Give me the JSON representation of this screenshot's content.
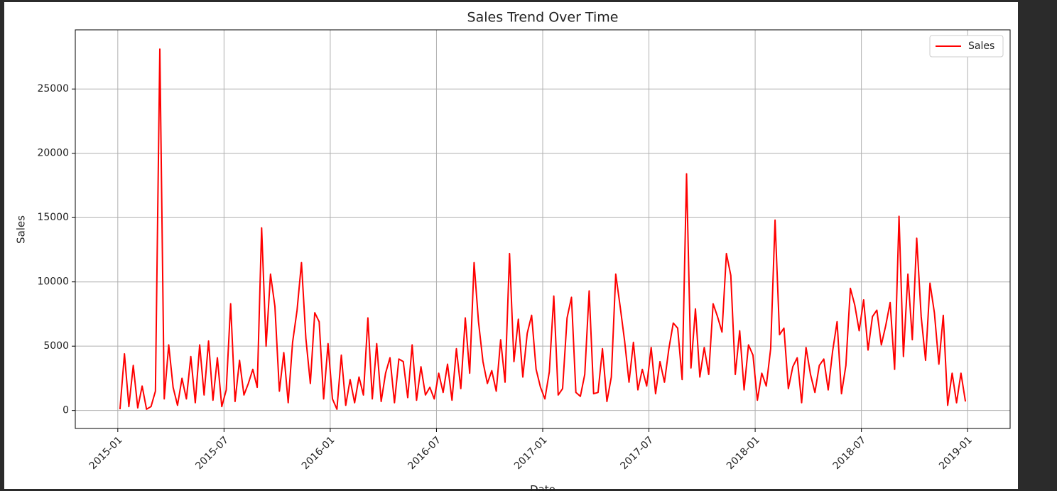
{
  "chart_data": {
    "type": "line",
    "title": "Sales Trend Over Time",
    "x_label": "Date",
    "y_label": "Sales",
    "x": [
      "2015-01",
      "2015-01",
      "2015-01",
      "2015-01",
      "2015-02",
      "2015-02",
      "2015-02",
      "2015-02",
      "2015-03",
      "2015-03",
      "2015-03",
      "2015-03",
      "2015-04",
      "2015-04",
      "2015-04",
      "2015-04",
      "2015-05",
      "2015-05",
      "2015-05",
      "2015-05",
      "2015-06",
      "2015-06",
      "2015-06",
      "2015-06",
      "2015-07",
      "2015-07",
      "2015-07",
      "2015-07",
      "2015-08",
      "2015-08",
      "2015-08",
      "2015-08",
      "2015-09",
      "2015-09",
      "2015-09",
      "2015-09",
      "2015-10",
      "2015-10",
      "2015-10",
      "2015-10",
      "2015-11",
      "2015-11",
      "2015-11",
      "2015-11",
      "2015-12",
      "2015-12",
      "2015-12",
      "2015-12",
      "2016-01",
      "2016-01",
      "2016-01",
      "2016-01",
      "2016-02",
      "2016-02",
      "2016-02",
      "2016-02",
      "2016-03",
      "2016-03",
      "2016-03",
      "2016-03",
      "2016-04",
      "2016-04",
      "2016-04",
      "2016-04",
      "2016-05",
      "2016-05",
      "2016-05",
      "2016-05",
      "2016-06",
      "2016-06",
      "2016-06",
      "2016-06",
      "2016-07",
      "2016-07",
      "2016-07",
      "2016-07",
      "2016-08",
      "2016-08",
      "2016-08",
      "2016-08",
      "2016-09",
      "2016-09",
      "2016-09",
      "2016-09",
      "2016-10",
      "2016-10",
      "2016-10",
      "2016-10",
      "2016-11",
      "2016-11",
      "2016-11",
      "2016-11",
      "2016-12",
      "2016-12",
      "2016-12",
      "2016-12",
      "2017-01",
      "2017-01",
      "2017-01",
      "2017-01",
      "2017-02",
      "2017-02",
      "2017-02",
      "2017-02",
      "2017-03",
      "2017-03",
      "2017-03",
      "2017-03",
      "2017-04",
      "2017-04",
      "2017-04",
      "2017-04",
      "2017-05",
      "2017-05",
      "2017-05",
      "2017-05",
      "2017-06",
      "2017-06",
      "2017-06",
      "2017-06",
      "2017-07",
      "2017-07",
      "2017-07",
      "2017-07",
      "2017-08",
      "2017-08",
      "2017-08",
      "2017-08",
      "2017-09",
      "2017-09",
      "2017-09",
      "2017-09",
      "2017-10",
      "2017-10",
      "2017-10",
      "2017-10",
      "2017-11",
      "2017-11",
      "2017-11",
      "2017-11",
      "2017-12",
      "2017-12",
      "2017-12",
      "2017-12",
      "2018-01",
      "2018-01",
      "2018-01",
      "2018-01",
      "2018-02",
      "2018-02",
      "2018-02",
      "2018-02",
      "2018-03",
      "2018-03",
      "2018-03",
      "2018-03",
      "2018-04",
      "2018-04",
      "2018-04",
      "2018-04",
      "2018-05",
      "2018-05",
      "2018-05",
      "2018-05",
      "2018-06",
      "2018-06",
      "2018-06",
      "2018-06",
      "2018-07",
      "2018-07",
      "2018-07",
      "2018-07",
      "2018-08",
      "2018-08",
      "2018-08",
      "2018-08",
      "2018-09",
      "2018-09",
      "2018-09",
      "2018-09",
      "2018-10",
      "2018-10",
      "2018-10",
      "2018-10",
      "2018-11",
      "2018-11",
      "2018-11",
      "2018-11",
      "2018-12",
      "2018-12",
      "2018-12",
      "2018-12"
    ],
    "series": [
      {
        "name": "Sales",
        "color": "#ff0000",
        "values": [
          100,
          4400,
          300,
          3500,
          200,
          1900,
          100,
          300,
          1500,
          28100,
          900,
          5100,
          1800,
          400,
          2500,
          900,
          4200,
          600,
          5100,
          1200,
          5400,
          800,
          4100,
          300,
          1600,
          8300,
          700,
          3900,
          1200,
          2100,
          3200,
          1800,
          14200,
          5000,
          10600,
          8100,
          1500,
          4500,
          600,
          5300,
          7800,
          11500,
          5600,
          2100,
          7600,
          6900,
          900,
          5200,
          900,
          100,
          4300,
          400,
          2400,
          600,
          2600,
          1200,
          7200,
          900,
          5200,
          700,
          2900,
          4100,
          600,
          4000,
          3800,
          1000,
          5100,
          800,
          3400,
          1200,
          1800,
          900,
          2900,
          1400,
          3600,
          800,
          4800,
          1700,
          7200,
          2900,
          11500,
          6900,
          3800,
          2100,
          3100,
          1500,
          5500,
          2200,
          12200,
          3800,
          7100,
          2600,
          6000,
          7400,
          3200,
          1800,
          900,
          3000,
          8900,
          1200,
          1700,
          7200,
          8800,
          1400,
          1100,
          2800,
          9300,
          1300,
          1400,
          4800,
          700,
          2600,
          10600,
          8100,
          5400,
          2200,
          5300,
          1600,
          3200,
          1900,
          4900,
          1300,
          3800,
          2200,
          4800,
          6800,
          6400,
          2400,
          18400,
          3300,
          7900,
          2600,
          4900,
          2800,
          8300,
          7300,
          6100,
          12200,
          10500,
          2800,
          6200,
          1600,
          5100,
          4300,
          800,
          2900,
          1900,
          4800,
          14800,
          5900,
          6400,
          1700,
          3400,
          4100,
          600,
          4900,
          2800,
          1400,
          3500,
          4000,
          1600,
          4600,
          6900,
          1300,
          3500,
          9500,
          8200,
          6200,
          8600,
          4700,
          7300,
          7800,
          5100,
          6600,
          8400,
          3200,
          15100,
          4200,
          10600,
          5500,
          13400,
          7300,
          3900,
          9900,
          7600,
          3600,
          7400,
          400,
          2900,
          600,
          2900,
          700
        ]
      }
    ],
    "xticks": [
      "2015-01",
      "2015-07",
      "2016-01",
      "2016-07",
      "2017-01",
      "2017-07",
      "2018-01",
      "2018-07",
      "2019-01"
    ],
    "ylim": [
      -1400,
      29600
    ],
    "yticks": [
      0,
      5000,
      10000,
      15000,
      20000,
      25000
    ],
    "grid": true,
    "legend": "upper right"
  }
}
